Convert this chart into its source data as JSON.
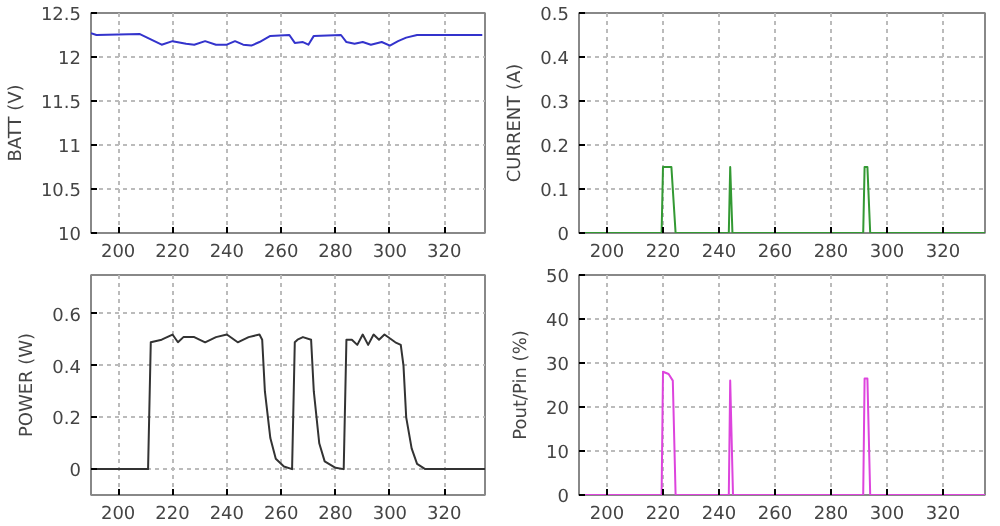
{
  "chart_data": [
    {
      "type": "line",
      "ylabel": "BATT (V)",
      "xlim": [
        190,
        335
      ],
      "xticks": [
        200,
        220,
        240,
        260,
        280,
        300,
        320
      ],
      "ylim": [
        10,
        12.5
      ],
      "yticks": [
        10,
        10.5,
        11,
        11.5,
        12,
        12.5
      ],
      "grid": true,
      "series": [
        {
          "color": "#3333cc",
          "x": [
            190,
            192,
            208,
            212,
            216,
            220,
            225,
            228,
            232,
            236,
            240,
            243,
            246,
            249,
            252,
            256,
            263,
            265,
            268,
            270,
            272,
            282,
            284,
            287,
            290,
            293,
            297,
            300,
            303,
            306,
            310,
            334
          ],
          "values": [
            12.27,
            12.25,
            12.26,
            12.2,
            12.14,
            12.18,
            12.15,
            12.14,
            12.18,
            12.14,
            12.14,
            12.18,
            12.14,
            12.13,
            12.17,
            12.24,
            12.25,
            12.16,
            12.17,
            12.14,
            12.24,
            12.25,
            12.17,
            12.15,
            12.17,
            12.14,
            12.17,
            12.13,
            12.18,
            12.22,
            12.25,
            12.25
          ]
        }
      ]
    },
    {
      "type": "line",
      "ylabel": "CURRENT (A)",
      "xlim": [
        190,
        335
      ],
      "xticks": [
        200,
        220,
        240,
        260,
        280,
        300,
        320
      ],
      "ylim": [
        0,
        0.5
      ],
      "yticks": [
        0,
        0.1,
        0.2,
        0.3,
        0.4,
        0.5
      ],
      "grid": true,
      "series": [
        {
          "color": "#339933",
          "x": [
            190,
            219.5,
            220,
            223,
            224.5,
            243.5,
            244,
            244.8,
            291.5,
            292,
            293,
            294,
            335
          ],
          "values": [
            0,
            0,
            0.15,
            0.15,
            0,
            0,
            0.15,
            0,
            0,
            0.15,
            0.15,
            0,
            0
          ]
        }
      ]
    },
    {
      "type": "line",
      "ylabel": "POWER (W)",
      "xlim": [
        190,
        335
      ],
      "xticks": [
        200,
        220,
        240,
        260,
        280,
        300,
        320
      ],
      "ylim": [
        -0.1,
        0.75
      ],
      "yticks": [
        0,
        0.2,
        0.4,
        0.6
      ],
      "grid": true,
      "series": [
        {
          "color": "#333333",
          "x": [
            190,
            211,
            212,
            216,
            220,
            222,
            224,
            228,
            232,
            236,
            240,
            244,
            248,
            252,
            253,
            254,
            256,
            258,
            261,
            264,
            265,
            266,
            268,
            271,
            272,
            274,
            276,
            280,
            283,
            284,
            286,
            288,
            290,
            292,
            294,
            296,
            298,
            302,
            304,
            305,
            306,
            308,
            310,
            313,
            335
          ],
          "values": [
            0,
            0,
            0.49,
            0.5,
            0.52,
            0.49,
            0.51,
            0.51,
            0.49,
            0.51,
            0.52,
            0.49,
            0.51,
            0.52,
            0.5,
            0.3,
            0.12,
            0.04,
            0.01,
            0,
            0.49,
            0.5,
            0.51,
            0.5,
            0.3,
            0.1,
            0.03,
            0.005,
            0,
            0.5,
            0.5,
            0.48,
            0.52,
            0.48,
            0.52,
            0.5,
            0.52,
            0.49,
            0.48,
            0.4,
            0.2,
            0.08,
            0.02,
            0,
            0
          ]
        }
      ]
    },
    {
      "type": "line",
      "ylabel": "Pout/Pin (%)",
      "xlim": [
        190,
        335
      ],
      "xticks": [
        200,
        220,
        240,
        260,
        280,
        300,
        320
      ],
      "ylim": [
        0,
        50
      ],
      "yticks": [
        0,
        10,
        20,
        30,
        40,
        50
      ],
      "grid": true,
      "series": [
        {
          "color": "#dd44dd",
          "x": [
            190,
            219.5,
            220,
            222,
            223.5,
            224.5,
            243.5,
            244,
            245,
            291.5,
            292,
            293,
            294,
            335
          ],
          "values": [
            0,
            0,
            28,
            27.5,
            26,
            0,
            0,
            26,
            0,
            0,
            26.5,
            26.5,
            0,
            0
          ]
        }
      ]
    }
  ]
}
